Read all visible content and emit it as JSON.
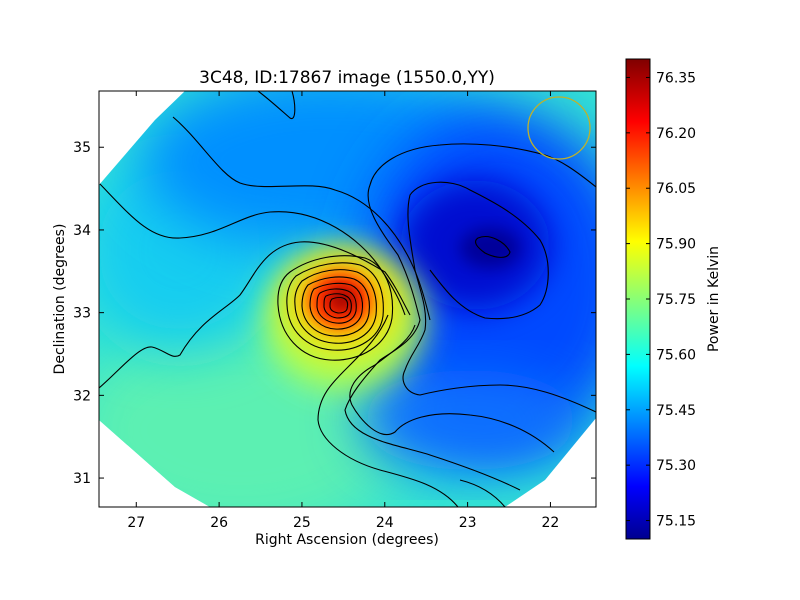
{
  "chart_data": {
    "type": "heatmap",
    "title": "3C48, ID:17867 image (1550.0,YY)",
    "xlabel": "Right Ascension (degrees)",
    "ylabel": "Declination (degrees)",
    "xlim": [
      27.45,
      21.45
    ],
    "ylim": [
      30.65,
      35.68
    ],
    "x_ticks": [
      27,
      26,
      25,
      24,
      23,
      22
    ],
    "y_ticks": [
      31,
      32,
      33,
      34,
      35
    ],
    "x_tick_labels": [
      "27",
      "26",
      "25",
      "24",
      "23",
      "22"
    ],
    "y_tick_labels": [
      "31",
      "32",
      "33",
      "34",
      "35"
    ],
    "colorbar": {
      "label": "Power in Kelvin",
      "range": [
        75.1,
        76.4
      ],
      "ticks": [
        75.15,
        75.3,
        75.45,
        75.6,
        75.75,
        75.9,
        76.05,
        76.2,
        76.35
      ],
      "tick_labels": [
        "75.15",
        "75.30",
        "75.45",
        "75.60",
        "75.75",
        "75.90",
        "76.05",
        "76.20",
        "76.35"
      ],
      "colormap": "jet"
    },
    "features": [
      {
        "kind": "peak",
        "ra": 24.5,
        "dec": 33.15,
        "value": 76.38
      },
      {
        "kind": "trough",
        "ra": 22.75,
        "dec": 33.85,
        "value": 75.15
      }
    ],
    "contours": "black",
    "beam_marker": {
      "ra": 21.9,
      "dec": 35.22,
      "color": "#bdb22d"
    },
    "grid": false,
    "legend": "none"
  }
}
